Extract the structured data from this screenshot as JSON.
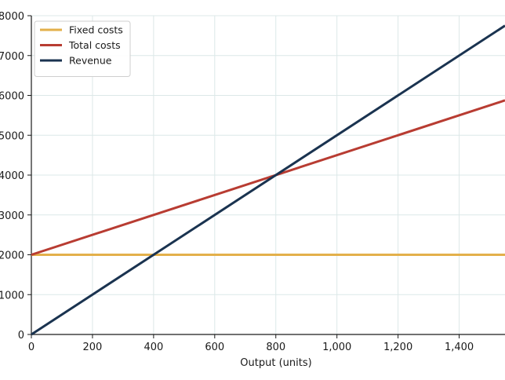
{
  "chart_data": {
    "type": "line",
    "title": "",
    "xlabel": "Output (units)",
    "ylabel": "",
    "xlim": [
      0,
      1550
    ],
    "ylim": [
      0,
      8000
    ],
    "x_ticks": [
      0,
      200,
      400,
      600,
      800,
      1000,
      1200,
      1400
    ],
    "x_tick_labels": [
      "0",
      "200",
      "400",
      "600",
      "800",
      "1,000",
      "1,200",
      "1,400"
    ],
    "y_ticks": [
      0,
      1000,
      2000,
      3000,
      4000,
      5000,
      6000,
      7000,
      8000
    ],
    "y_tick_labels": [
      "0",
      "1000",
      "2000",
      "3000",
      "4000",
      "5000",
      "6000",
      "7000",
      "8000"
    ],
    "grid": true,
    "legend_position": "top-left",
    "series": [
      {
        "name": "Fixed costs",
        "color": "#e3b04b",
        "x": [
          0,
          1550
        ],
        "y": [
          2000,
          2000
        ]
      },
      {
        "name": "Total costs",
        "color": "#b83c32",
        "x": [
          0,
          1550
        ],
        "y": [
          2000,
          5875
        ]
      },
      {
        "name": "Revenue",
        "color": "#1a3350",
        "x": [
          0,
          1550
        ],
        "y": [
          0,
          7750
        ]
      }
    ]
  }
}
